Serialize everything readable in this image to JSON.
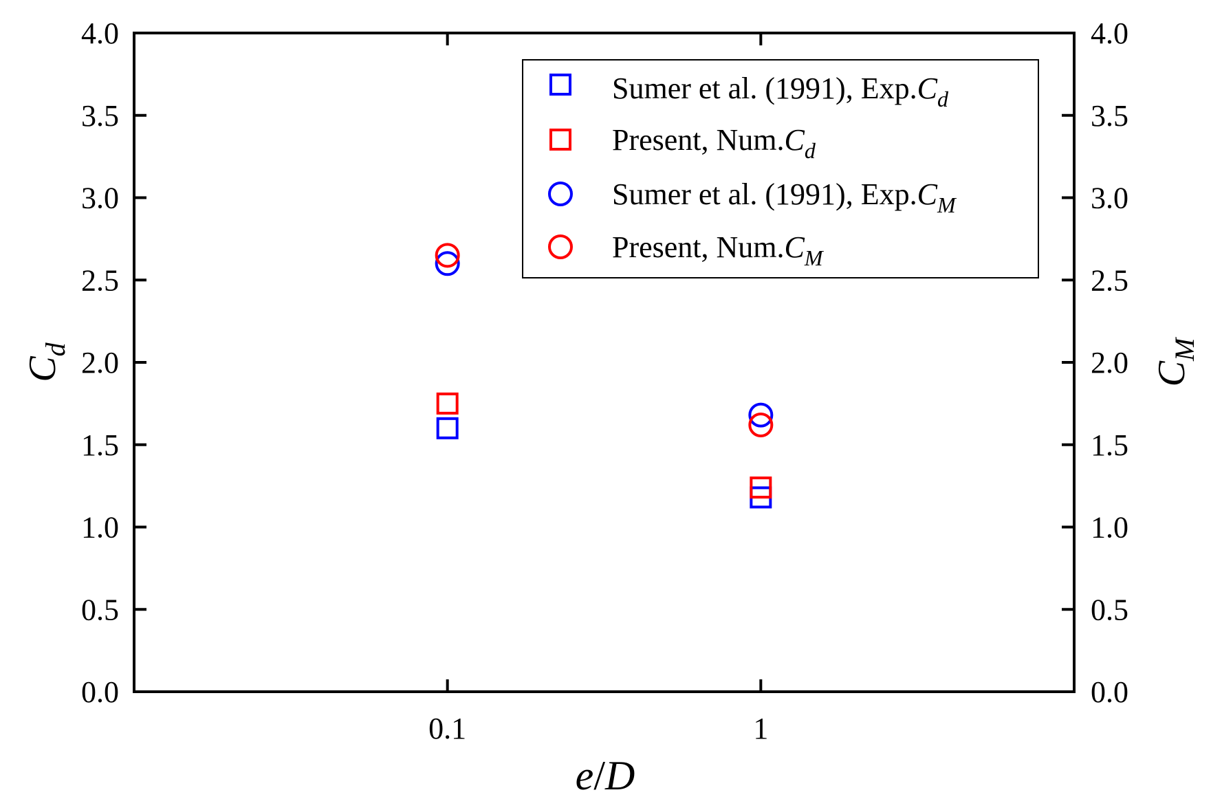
{
  "chart_data": {
    "type": "scatter",
    "title": "",
    "x_scale": "log",
    "xlim": [
      0.01,
      10
    ],
    "x_ticks": [
      "0.1",
      "1"
    ],
    "xlabel": {
      "italic_a": "e",
      "sep": "/",
      "italic_b": "D"
    },
    "ylim_left": [
      0,
      4
    ],
    "ylim_right": [
      0,
      4
    ],
    "y_ticks": [
      "0.0",
      "0.5",
      "1.0",
      "1.5",
      "2.0",
      "2.5",
      "3.0",
      "3.5",
      "4.0"
    ],
    "ylabel_left": {
      "main": "C",
      "sub": "d"
    },
    "ylabel_right": {
      "main": "C",
      "sub": "M"
    },
    "grid": false,
    "legend_position": "top-right",
    "series": [
      {
        "name": "Sumer et al. (1991), Exp.",
        "symbol": "C",
        "subscript": "d",
        "marker": "square",
        "color": "#0000ff",
        "x": [
          0.1,
          1
        ],
        "y": [
          1.6,
          1.18
        ]
      },
      {
        "name": "Present, Num.",
        "symbol": "C",
        "subscript": "d",
        "marker": "square",
        "color": "#ff0000",
        "x": [
          0.1,
          1
        ],
        "y": [
          1.75,
          1.24
        ]
      },
      {
        "name": "Sumer et al. (1991), Exp.",
        "symbol": "C",
        "subscript": "M",
        "marker": "circle",
        "color": "#0000ff",
        "x": [
          0.1,
          1
        ],
        "y": [
          2.6,
          1.68
        ]
      },
      {
        "name": "Present, Num.",
        "symbol": "C",
        "subscript": "M",
        "marker": "circle",
        "color": "#ff0000",
        "x": [
          0.1,
          1
        ],
        "y": [
          2.65,
          1.62
        ]
      }
    ]
  }
}
